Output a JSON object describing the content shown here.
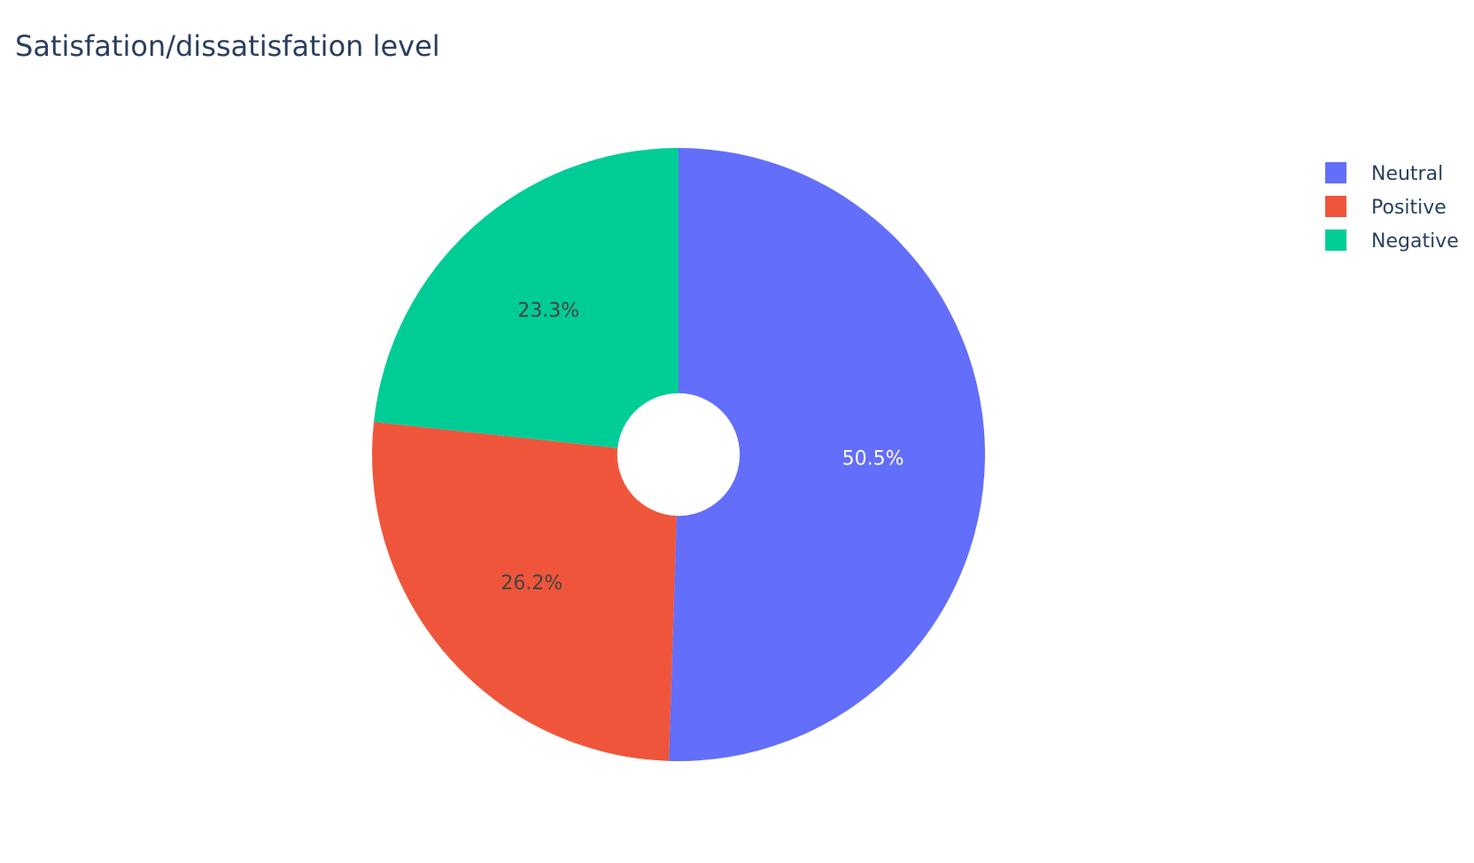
{
  "chart_data": {
    "type": "pie",
    "title": "Satisfation/dissatisfation level",
    "hole": 0.2,
    "sort_direction": "clockwise",
    "start_angle_deg": 90,
    "legend_position": "top-right",
    "slices": [
      {
        "label": "Neutral",
        "value": 50.5,
        "text": "50.5%",
        "color": "#636efa",
        "text_color": "#ffffff"
      },
      {
        "label": "Positive",
        "value": 26.2,
        "text": "26.2%",
        "color": "#ef553b",
        "text_color": "#444444"
      },
      {
        "label": "Negative",
        "value": 23.3,
        "text": "23.3%",
        "color": "#00cc96",
        "text_color": "#444444"
      }
    ]
  }
}
